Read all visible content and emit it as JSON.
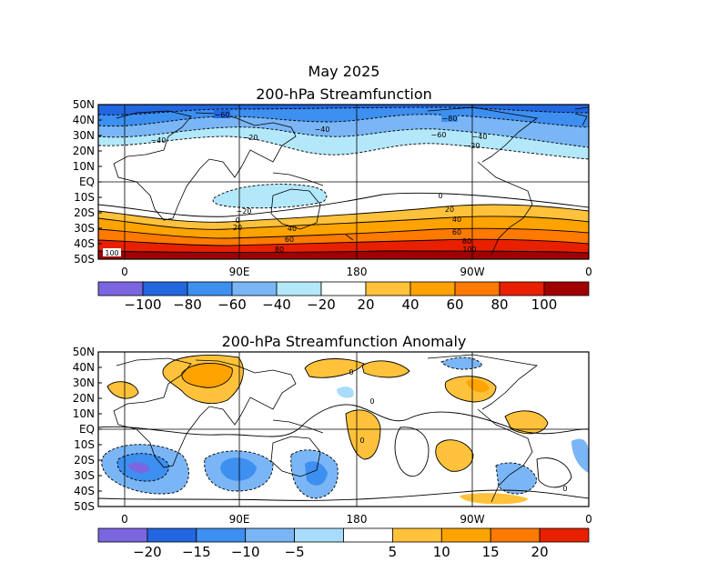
{
  "figure": {
    "main_title": "May 2025"
  },
  "maps": [
    {
      "title": "200-hPa Streamfunction",
      "lat_labels": [
        "50N",
        "40N",
        "30N",
        "20N",
        "10N",
        "EQ",
        "10S",
        "20S",
        "30S",
        "40S",
        "50S"
      ],
      "lon_labels": [
        "0",
        "90E",
        "180",
        "90W",
        "0"
      ],
      "colorbar": {
        "colors": [
          "#7b66e0",
          "#2266e0",
          "#3d8ff0",
          "#7ab6f5",
          "#b3e8fb",
          "#ffffff",
          "#ffc23a",
          "#ffa300",
          "#ff7a00",
          "#e82000",
          "#a00000"
        ],
        "labels": [
          "-100",
          "-80",
          "-60",
          "-40",
          "-20",
          "20",
          "40",
          "60",
          "80",
          "100"
        ]
      },
      "contour_labels": [
        "-80",
        "-60",
        "-40",
        "-20",
        "0",
        "20",
        "40",
        "60",
        "80",
        "100"
      ]
    },
    {
      "title": "200-hPa Streamfunction Anomaly",
      "lat_labels": [
        "50N",
        "40N",
        "30N",
        "20N",
        "10N",
        "EQ",
        "10S",
        "20S",
        "30S",
        "40S",
        "50S"
      ],
      "lon_labels": [
        "0",
        "90E",
        "180",
        "90W",
        "0"
      ],
      "colorbar": {
        "colors": [
          "#7b66e0",
          "#2266e0",
          "#3d8ff0",
          "#7ab6f5",
          "#a8dcfb",
          "#ffffff",
          "#ffc23a",
          "#ffa300",
          "#ff7a00",
          "#e82000"
        ],
        "labels": [
          "-20",
          "-15",
          "-10",
          "-5",
          "5",
          "10",
          "15",
          "20"
        ]
      },
      "contour_labels": [
        "0"
      ]
    }
  ]
}
